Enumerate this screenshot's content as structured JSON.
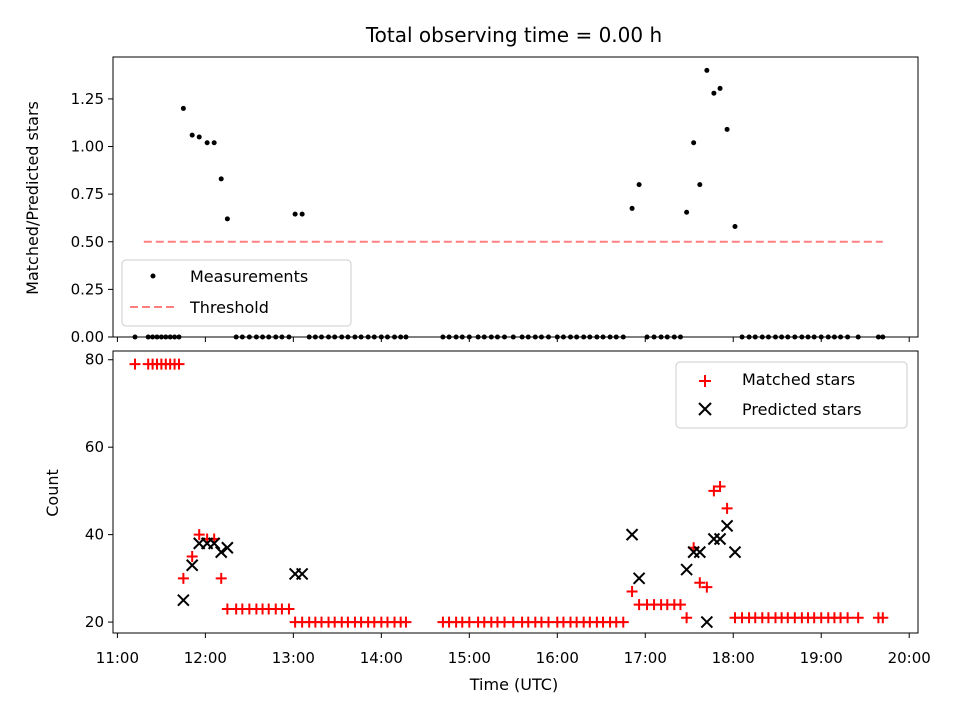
{
  "chart_data": [
    {
      "type": "scatter",
      "title": "Total observing time = 0.00 h",
      "ylabel": "Matched/Predicted stars",
      "xlim": [
        10.95,
        20.1
      ],
      "ylim": [
        0,
        1.47
      ],
      "yticks": [
        0,
        0.25,
        0.5,
        0.75,
        1.0,
        1.25
      ],
      "ytick_labels": [
        "0.00",
        "0.25",
        "0.50",
        "0.75",
        "1.00",
        "1.25"
      ],
      "xticks": [
        11,
        12,
        13,
        14,
        15,
        16,
        17,
        18,
        19,
        20
      ],
      "legend": {
        "position": "lower-left",
        "entries": [
          "Measurements",
          "Threshold"
        ]
      },
      "grid": false,
      "series": [
        {
          "name": "Measurements",
          "marker": "dot",
          "color": "#000000",
          "x": [
            11.2,
            11.35,
            11.4,
            11.45,
            11.5,
            11.55,
            11.6,
            11.65,
            11.7,
            11.75,
            11.85,
            11.93,
            12.02,
            12.1,
            12.18,
            12.25,
            12.35,
            12.42,
            12.5,
            12.58,
            12.65,
            12.72,
            12.8,
            12.87,
            12.95,
            13.02,
            13.1,
            13.18,
            13.25,
            13.32,
            13.4,
            13.47,
            13.55,
            13.62,
            13.7,
            13.77,
            13.85,
            13.92,
            14.0,
            14.07,
            14.15,
            14.22,
            14.28,
            14.7,
            14.77,
            14.85,
            14.92,
            15.0,
            15.1,
            15.17,
            15.25,
            15.32,
            15.4,
            15.5,
            15.6,
            15.67,
            15.75,
            15.82,
            15.9,
            16.0,
            16.07,
            16.15,
            16.22,
            16.3,
            16.37,
            16.45,
            16.52,
            16.6,
            16.67,
            16.75,
            16.85,
            16.93,
            17.02,
            17.1,
            17.18,
            17.25,
            17.33,
            17.4,
            17.47,
            17.55,
            17.62,
            17.7,
            17.78,
            17.85,
            17.93,
            18.02,
            18.1,
            18.18,
            18.25,
            18.33,
            18.4,
            18.48,
            18.55,
            18.62,
            18.7,
            18.78,
            18.85,
            18.92,
            19.0,
            19.08,
            19.15,
            19.22,
            19.3,
            19.42,
            19.65,
            19.7
          ],
          "y": [
            0,
            0,
            0,
            0,
            0,
            0,
            0,
            0,
            0,
            1.2,
            1.06,
            1.05,
            1.02,
            1.02,
            0.83,
            0.62,
            0,
            0,
            0,
            0,
            0,
            0,
            0,
            0,
            0,
            0.645,
            0.645,
            0,
            0,
            0,
            0,
            0,
            0,
            0,
            0,
            0,
            0,
            0,
            0,
            0,
            0,
            0,
            0,
            0,
            0,
            0,
            0,
            0,
            0,
            0,
            0,
            0,
            0,
            0,
            0,
            0,
            0,
            0,
            0,
            0,
            0,
            0,
            0,
            0,
            0,
            0,
            0,
            0,
            0,
            0,
            0.675,
            0.8,
            0,
            0,
            0,
            0,
            0,
            0,
            0.655,
            1.02,
            0.8,
            1.4,
            1.28,
            1.305,
            1.09,
            0.58,
            0,
            0,
            0,
            0,
            0,
            0,
            0,
            0,
            0,
            0,
            0,
            0,
            0,
            0,
            0,
            0,
            0,
            0,
            0,
            0
          ]
        },
        {
          "name": "Threshold",
          "type": "line",
          "style": "dashed",
          "color": "#ff8080",
          "x": [
            11.3,
            19.7
          ],
          "y": [
            0.5,
            0.5
          ]
        }
      ]
    },
    {
      "type": "scatter",
      "xlabel": "Time (UTC)",
      "ylabel": "Count",
      "xlim": [
        10.95,
        20.1
      ],
      "ylim": [
        17.5,
        82
      ],
      "yticks": [
        20,
        40,
        60,
        80
      ],
      "ytick_labels": [
        "20",
        "40",
        "60",
        "80"
      ],
      "xticks": [
        11,
        12,
        13,
        14,
        15,
        16,
        17,
        18,
        19,
        20
      ],
      "xtick_labels": [
        "11:00",
        "12:00",
        "13:00",
        "14:00",
        "15:00",
        "16:00",
        "17:00",
        "18:00",
        "19:00",
        "20:00"
      ],
      "legend": {
        "position": "upper-right",
        "entries": [
          "Matched stars",
          "Predicted stars"
        ]
      },
      "grid": false,
      "series": [
        {
          "name": "Matched stars",
          "marker": "plus",
          "color": "#ff0000",
          "x": [
            11.2,
            11.35,
            11.4,
            11.45,
            11.5,
            11.55,
            11.6,
            11.65,
            11.7,
            11.75,
            11.85,
            11.93,
            12.02,
            12.1,
            12.18,
            12.25,
            12.35,
            12.42,
            12.5,
            12.58,
            12.65,
            12.72,
            12.8,
            12.87,
            12.95,
            13.02,
            13.1,
            13.18,
            13.25,
            13.32,
            13.4,
            13.47,
            13.55,
            13.62,
            13.7,
            13.77,
            13.85,
            13.92,
            14.0,
            14.07,
            14.15,
            14.22,
            14.28,
            14.7,
            14.77,
            14.85,
            14.92,
            15.0,
            15.1,
            15.17,
            15.25,
            15.32,
            15.4,
            15.5,
            15.6,
            15.67,
            15.75,
            15.82,
            15.9,
            16.0,
            16.07,
            16.15,
            16.22,
            16.3,
            16.37,
            16.45,
            16.52,
            16.6,
            16.67,
            16.75,
            16.85,
            16.93,
            17.02,
            17.1,
            17.18,
            17.25,
            17.33,
            17.4,
            17.47,
            17.55,
            17.62,
            17.7,
            17.78,
            17.85,
            17.93,
            18.02,
            18.1,
            18.18,
            18.25,
            18.33,
            18.4,
            18.48,
            18.55,
            18.62,
            18.7,
            18.78,
            18.85,
            18.92,
            19.0,
            19.08,
            19.15,
            19.22,
            19.3,
            19.42,
            19.65,
            19.7
          ],
          "y": [
            79,
            79,
            79,
            79,
            79,
            79,
            79,
            79,
            79,
            30,
            35,
            40,
            39,
            39,
            30,
            23,
            23,
            23,
            23,
            23,
            23,
            23,
            23,
            23,
            23,
            20,
            20,
            20,
            20,
            20,
            20,
            20,
            20,
            20,
            20,
            20,
            20,
            20,
            20,
            20,
            20,
            20,
            20,
            20,
            20,
            20,
            20,
            20,
            20,
            20,
            20,
            20,
            20,
            20,
            20,
            20,
            20,
            20,
            20,
            20,
            20,
            20,
            20,
            20,
            20,
            20,
            20,
            20,
            20,
            20,
            27,
            24,
            24,
            24,
            24,
            24,
            24,
            24,
            21,
            37,
            29,
            28,
            50,
            51,
            46,
            21,
            21,
            21,
            21,
            21,
            21,
            21,
            21,
            21,
            21,
            21,
            21,
            21,
            21,
            21,
            21,
            21,
            21,
            21,
            21,
            21
          ]
        },
        {
          "name": "Predicted stars",
          "marker": "x",
          "color": "#000000",
          "x": [
            11.75,
            11.85,
            11.93,
            12.02,
            12.1,
            12.18,
            12.25,
            13.02,
            13.1,
            16.85,
            16.93,
            17.47,
            17.55,
            17.62,
            17.7,
            17.78,
            17.85,
            17.93,
            18.02
          ],
          "y": [
            25,
            33,
            38,
            38,
            38,
            36,
            37,
            31,
            31,
            40,
            30,
            32,
            36,
            36,
            20,
            39,
            39,
            42,
            36
          ]
        }
      ]
    }
  ]
}
